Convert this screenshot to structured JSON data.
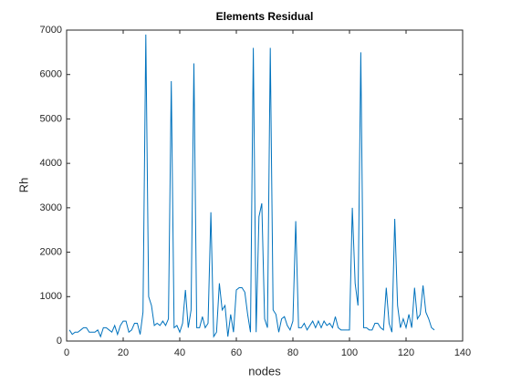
{
  "chart_data": {
    "type": "line",
    "title": "Elements Residual",
    "xlabel": "nodes",
    "ylabel": "Rh",
    "x": [
      1,
      2,
      3,
      4,
      5,
      6,
      7,
      8,
      9,
      10,
      11,
      12,
      13,
      14,
      15,
      16,
      17,
      18,
      19,
      20,
      21,
      22,
      23,
      24,
      25,
      26,
      27,
      28,
      29,
      30,
      31,
      32,
      33,
      34,
      35,
      36,
      37,
      38,
      39,
      40,
      41,
      42,
      43,
      44,
      45,
      46,
      47,
      48,
      49,
      50,
      51,
      52,
      53,
      54,
      55,
      56,
      57,
      58,
      59,
      60,
      61,
      62,
      63,
      64,
      65,
      66,
      67,
      68,
      69,
      70,
      71,
      72,
      73,
      74,
      75,
      76,
      77,
      78,
      79,
      80,
      81,
      82,
      83,
      84,
      85,
      86,
      87,
      88,
      89,
      90,
      91,
      92,
      93,
      94,
      95,
      96,
      97,
      98,
      99,
      100,
      101,
      102,
      103,
      104,
      105,
      106,
      107,
      108,
      109,
      110,
      111,
      112,
      113,
      114,
      115,
      116,
      117,
      118,
      119,
      120,
      121,
      122,
      123,
      124,
      125,
      126,
      127,
      128,
      129,
      130
    ],
    "series": [
      {
        "name": "Rh",
        "color": "#0072bd",
        "values": [
          250,
          150,
          200,
          200,
          250,
          300,
          300,
          200,
          200,
          200,
          250,
          100,
          300,
          300,
          250,
          200,
          350,
          150,
          350,
          450,
          450,
          200,
          250,
          400,
          400,
          150,
          650,
          6900,
          1000,
          800,
          350,
          400,
          350,
          450,
          350,
          500,
          5850,
          300,
          350,
          200,
          400,
          1150,
          300,
          700,
          6250,
          300,
          300,
          550,
          300,
          400,
          2900,
          100,
          200,
          1300,
          700,
          800,
          100,
          600,
          200,
          1150,
          1200,
          1200,
          1100,
          600,
          200,
          6600,
          200,
          2800,
          3100,
          500,
          300,
          6600,
          700,
          600,
          200,
          500,
          550,
          350,
          250,
          450,
          2700,
          300,
          300,
          400,
          250,
          350,
          450,
          300,
          450,
          300,
          450,
          350,
          400,
          300,
          550,
          300,
          250,
          250,
          250,
          250,
          3000,
          1300,
          800,
          6500,
          300,
          300,
          250,
          250,
          400,
          400,
          300,
          250,
          1200,
          400,
          200,
          2750,
          800,
          300,
          500,
          300,
          600,
          300,
          1200,
          500,
          600,
          1250,
          650,
          500,
          300,
          250
        ]
      }
    ],
    "xlim": [
      0,
      140
    ],
    "xticks": [
      0,
      20,
      40,
      60,
      80,
      100,
      120,
      140
    ],
    "ylim": [
      0,
      7000
    ],
    "yticks": [
      0,
      1000,
      2000,
      3000,
      4000,
      5000,
      6000,
      7000
    ]
  }
}
